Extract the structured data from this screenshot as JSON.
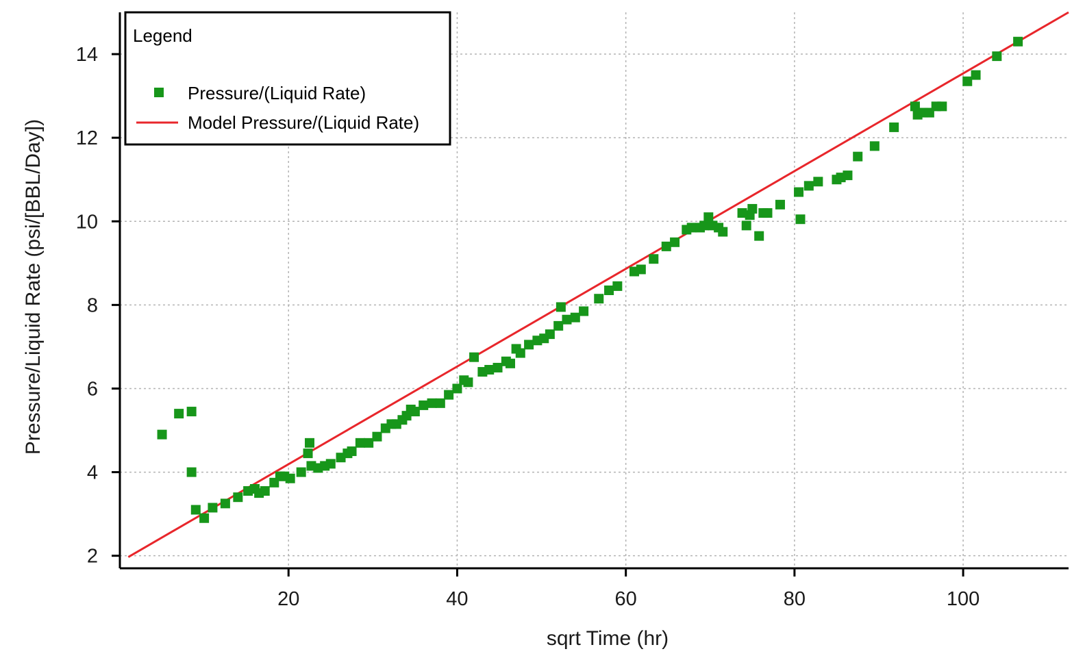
{
  "chart_data": {
    "type": "scatter",
    "title": "",
    "xlabel": "sqrt Time (hr)",
    "ylabel": "Pressure/Liquid Rate (psi/[BBL/Day])",
    "xlim": [
      0,
      112.5
    ],
    "ylim": [
      1.7,
      15.0
    ],
    "x_ticks": [
      20,
      40,
      60,
      80,
      100
    ],
    "y_ticks": [
      2,
      4,
      6,
      8,
      10,
      12,
      14
    ],
    "grid": true,
    "grid_style": "dotted",
    "legend": {
      "title": "Legend",
      "placement": "top-left"
    },
    "series": [
      {
        "name": "Pressure/(Liquid Rate)",
        "kind": "scatter",
        "marker": "square",
        "color": "#17961a",
        "points": [
          [
            5.0,
            4.9
          ],
          [
            7.0,
            5.4
          ],
          [
            8.5,
            5.45
          ],
          [
            8.5,
            4.0
          ],
          [
            9.0,
            3.1
          ],
          [
            10.0,
            2.9
          ],
          [
            11.0,
            3.15
          ],
          [
            12.5,
            3.25
          ],
          [
            14.0,
            3.4
          ],
          [
            15.2,
            3.55
          ],
          [
            16.0,
            3.6
          ],
          [
            16.5,
            3.5
          ],
          [
            17.2,
            3.55
          ],
          [
            18.3,
            3.75
          ],
          [
            19.0,
            3.9
          ],
          [
            19.5,
            3.9
          ],
          [
            20.2,
            3.85
          ],
          [
            21.5,
            4.0
          ],
          [
            22.3,
            4.45
          ],
          [
            22.5,
            4.7
          ],
          [
            22.7,
            4.15
          ],
          [
            23.5,
            4.1
          ],
          [
            24.3,
            4.15
          ],
          [
            25.0,
            4.2
          ],
          [
            26.2,
            4.35
          ],
          [
            27.0,
            4.45
          ],
          [
            27.5,
            4.5
          ],
          [
            28.5,
            4.7
          ],
          [
            29.5,
            4.7
          ],
          [
            30.5,
            4.85
          ],
          [
            31.5,
            5.05
          ],
          [
            32.2,
            5.15
          ],
          [
            32.8,
            5.15
          ],
          [
            33.5,
            5.25
          ],
          [
            34.0,
            5.35
          ],
          [
            34.5,
            5.5
          ],
          [
            35.0,
            5.45
          ],
          [
            36.0,
            5.6
          ],
          [
            37.0,
            5.65
          ],
          [
            38.0,
            5.65
          ],
          [
            39.0,
            5.85
          ],
          [
            40.0,
            6.0
          ],
          [
            40.8,
            6.2
          ],
          [
            41.3,
            6.15
          ],
          [
            42.0,
            6.75
          ],
          [
            43.0,
            6.4
          ],
          [
            43.8,
            6.45
          ],
          [
            44.8,
            6.5
          ],
          [
            45.8,
            6.65
          ],
          [
            46.3,
            6.6
          ],
          [
            47.0,
            6.95
          ],
          [
            47.5,
            6.85
          ],
          [
            48.5,
            7.05
          ],
          [
            49.5,
            7.15
          ],
          [
            50.3,
            7.2
          ],
          [
            51.0,
            7.3
          ],
          [
            52.0,
            7.5
          ],
          [
            52.3,
            7.95
          ],
          [
            53.0,
            7.65
          ],
          [
            54.0,
            7.7
          ],
          [
            55.0,
            7.85
          ],
          [
            56.8,
            8.15
          ],
          [
            58.0,
            8.35
          ],
          [
            59.0,
            8.45
          ],
          [
            61.0,
            8.8
          ],
          [
            61.8,
            8.85
          ],
          [
            63.3,
            9.1
          ],
          [
            64.8,
            9.4
          ],
          [
            65.8,
            9.5
          ],
          [
            67.2,
            9.8
          ],
          [
            67.8,
            9.85
          ],
          [
            68.8,
            9.85
          ],
          [
            69.3,
            9.9
          ],
          [
            69.8,
            10.1
          ],
          [
            70.3,
            9.9
          ],
          [
            71.0,
            9.85
          ],
          [
            71.5,
            9.75
          ],
          [
            73.8,
            10.2
          ],
          [
            74.3,
            9.9
          ],
          [
            74.7,
            10.15
          ],
          [
            75.0,
            10.3
          ],
          [
            75.8,
            9.65
          ],
          [
            76.3,
            10.2
          ],
          [
            76.8,
            10.2
          ],
          [
            78.3,
            10.4
          ],
          [
            80.5,
            10.7
          ],
          [
            80.7,
            10.05
          ],
          [
            81.7,
            10.85
          ],
          [
            82.8,
            10.95
          ],
          [
            85.0,
            11.0
          ],
          [
            85.5,
            11.05
          ],
          [
            86.3,
            11.1
          ],
          [
            87.5,
            11.55
          ],
          [
            89.5,
            11.8
          ],
          [
            91.8,
            12.25
          ],
          [
            94.3,
            12.75
          ],
          [
            94.6,
            12.55
          ],
          [
            95.3,
            12.6
          ],
          [
            96.0,
            12.6
          ],
          [
            96.8,
            12.75
          ],
          [
            97.5,
            12.75
          ],
          [
            100.5,
            13.35
          ],
          [
            101.5,
            13.5
          ],
          [
            104.0,
            13.95
          ],
          [
            106.5,
            14.3
          ]
        ]
      },
      {
        "name": "Model Pressure/(Liquid Rate)",
        "kind": "line",
        "color": "#e8262b",
        "points": [
          [
            1.0,
            1.97
          ],
          [
            112.5,
            15.0
          ]
        ]
      }
    ]
  }
}
